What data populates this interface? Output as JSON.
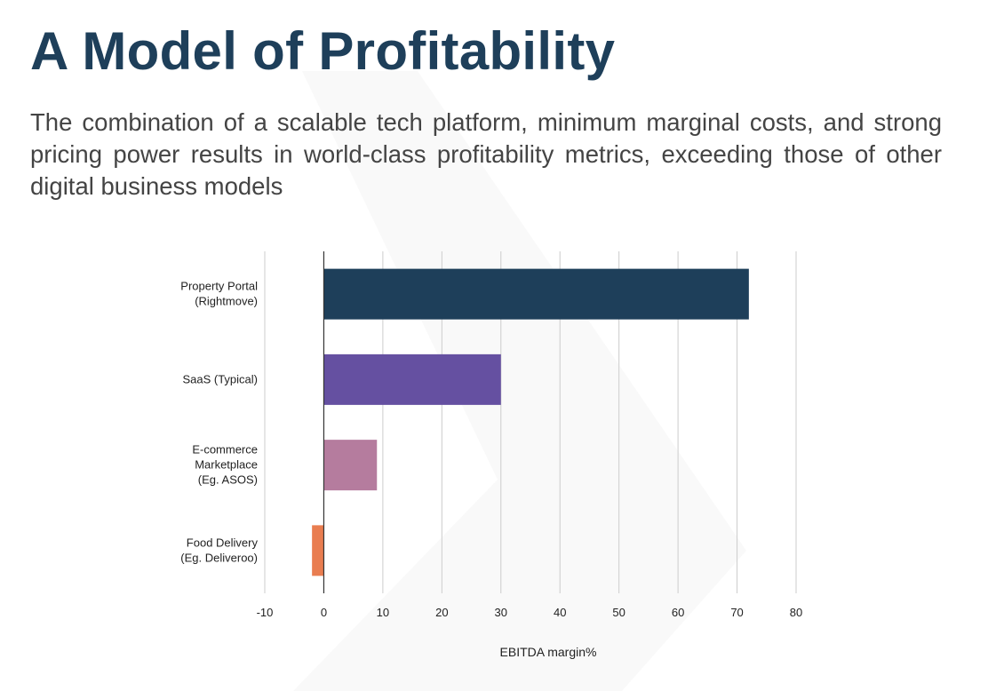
{
  "title": "A Model of Profitability",
  "subtitle": "The combination of a scalable tech platform, minimum marginal costs, and strong pricing power results in world-class profitability metrics, exceeding those of other digital business models",
  "chart_data": {
    "type": "bar",
    "orientation": "horizontal",
    "categories": [
      [
        "Property Portal",
        "(Rightmove)"
      ],
      [
        "SaaS (Typical)"
      ],
      [
        "E-commerce",
        "Marketplace",
        "(Eg. ASOS)"
      ],
      [
        "Food Delivery",
        "(Eg. Deliveroo)"
      ]
    ],
    "values": [
      72,
      30,
      9,
      -2
    ],
    "colors": [
      "#1e3f5a",
      "#6550a1",
      "#b57c9e",
      "#e97d50"
    ],
    "xlabel": "EBITDA margin%",
    "ylabel": "",
    "xlim": [
      -10,
      80
    ],
    "xticks": [
      -10,
      0,
      10,
      20,
      30,
      40,
      50,
      60,
      70,
      80
    ],
    "grid": true,
    "legend": "none"
  }
}
